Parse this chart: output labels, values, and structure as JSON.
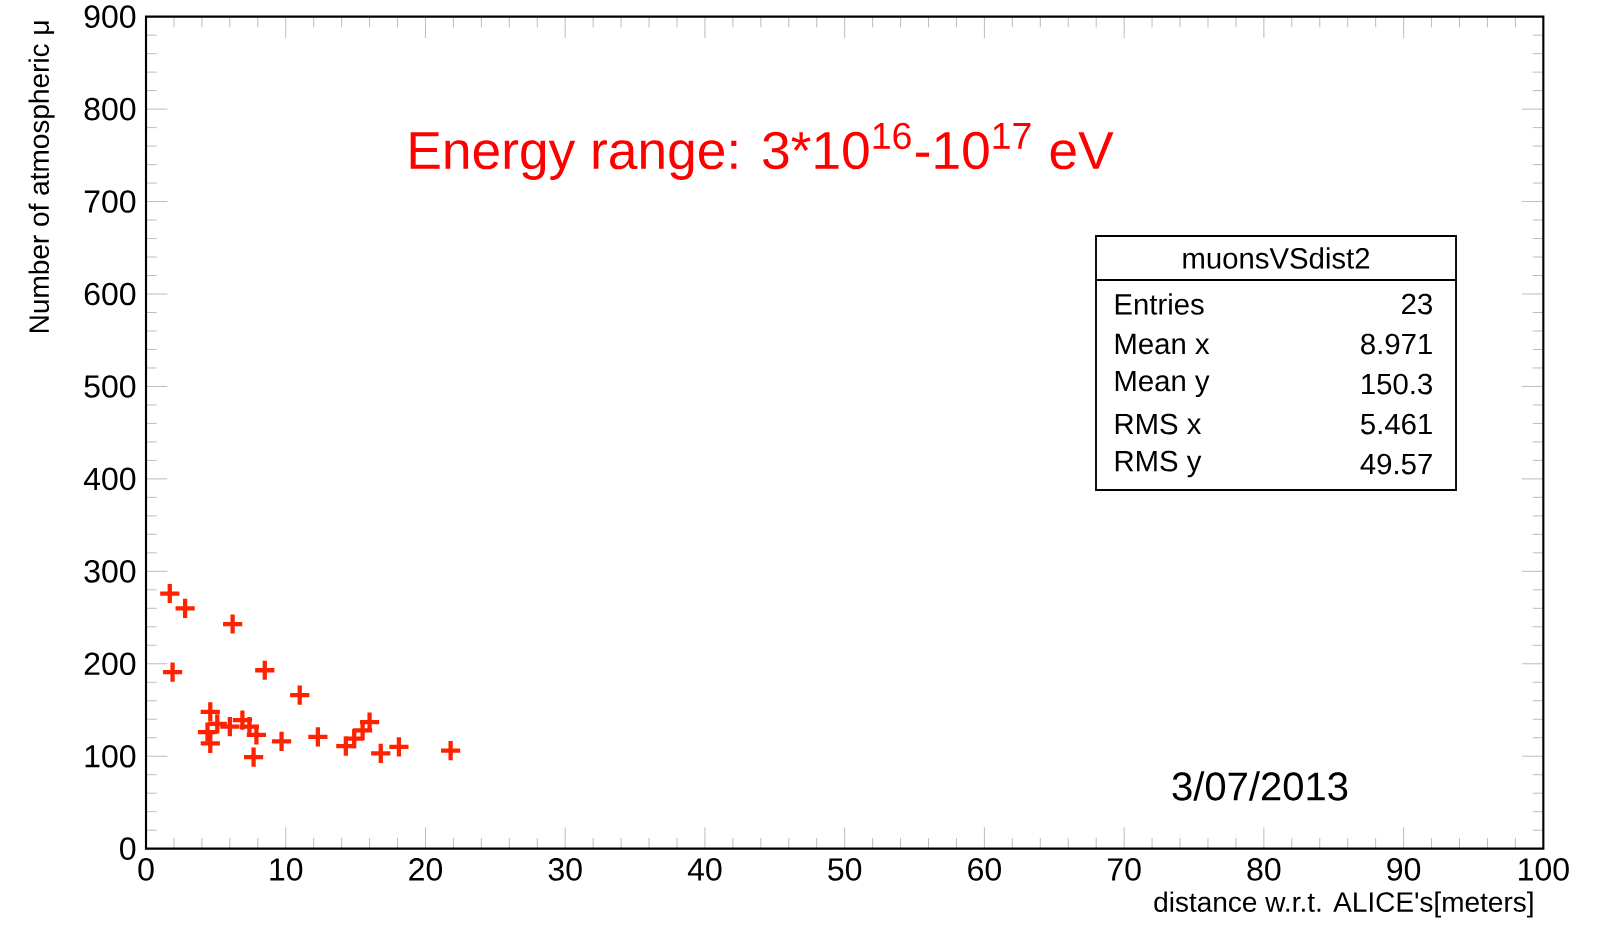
{
  "chart_data": {
    "type": "scatter",
    "title": "Energy range: 3*10$^{16}$-10$^{17}$ eV",
    "xlabel": "distance w.r.t. ALICE's[meters]",
    "ylabel": "Number of atmospheric μ",
    "x": [
      1.7,
      2.8,
      6.2,
      1.9,
      8.5,
      11.0,
      4.6,
      4.4,
      4.6,
      5.1,
      6.0,
      6.9,
      7.4,
      7.9,
      7.7,
      9.7,
      12.3,
      14.3,
      14.9,
      15.5,
      16.0,
      16.8,
      18.1,
      21.8
    ],
    "values": [
      276,
      260,
      243,
      191,
      193,
      166,
      148,
      126,
      114,
      135,
      132,
      139,
      132,
      123,
      99,
      116,
      121,
      111,
      119,
      128,
      137,
      103,
      110,
      106
    ],
    "color": "#ff2200",
    "marker": "cross",
    "xlim": [
      0,
      100
    ],
    "ylim": [
      0,
      900
    ],
    "xticks": [
      0,
      10,
      20,
      30,
      40,
      50,
      60,
      70,
      80,
      90,
      100
    ],
    "yticks": [
      0,
      100,
      200,
      300,
      400,
      500,
      600,
      700,
      800,
      900
    ],
    "annotations": [
      "muonsVSdist2",
      "Entries",
      "23",
      "Mean x",
      "8.971",
      "Mean y",
      "150.3",
      "RMS x",
      "5.461",
      "RMS y",
      "49.57",
      "3/07/2013"
    ]
  }
}
